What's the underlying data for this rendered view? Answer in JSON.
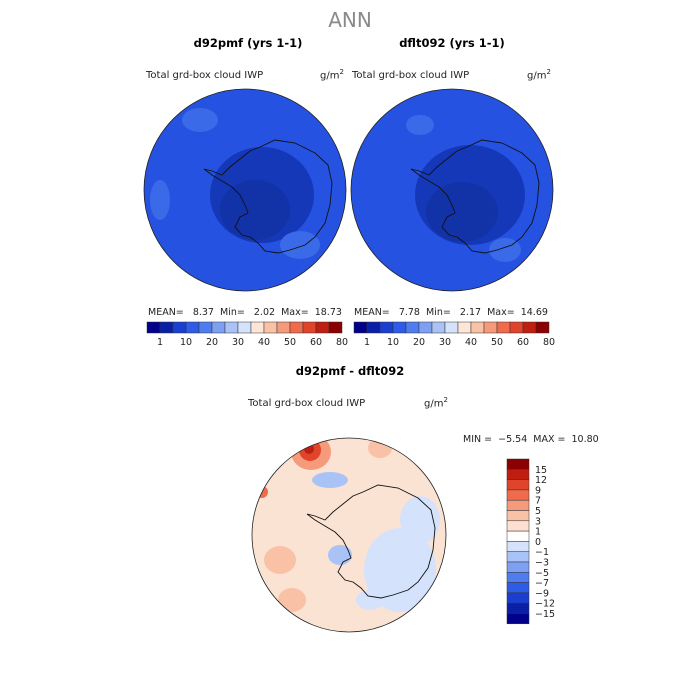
{
  "title": "ANN",
  "panels": [
    {
      "id": "p1",
      "title": "d92pmf (yrs 1-1)",
      "var_label": "Total grd-box cloud IWP",
      "unit": "g/m",
      "unit_sup": "2",
      "stats": "MEAN=   8.37  Min=   2.02  Max=  18.73"
    },
    {
      "id": "p2",
      "title": "dflt092 (yrs 1-1)",
      "var_label": "Total grd-box cloud IWP",
      "unit": "g/m",
      "unit_sup": "2",
      "stats": "MEAN=   7.78  Min=   2.17  Max=  14.69"
    }
  ],
  "colorbar_top": {
    "labels": [
      "1",
      "10",
      "20",
      "30",
      "40",
      "50",
      "60",
      "80"
    ],
    "colors": [
      "#00008b",
      "#0a1fa8",
      "#1a3fd0",
      "#2e5be8",
      "#4f7df0",
      "#7ea0f2",
      "#aac3f7",
      "#d4e2fb",
      "#fde6d8",
      "#f9c2a6",
      "#f59a7a",
      "#f06a4c",
      "#e0442a",
      "#c01e10",
      "#8b0000"
    ]
  },
  "difference": {
    "title": "d92pmf - dflt092",
    "var_label": "Total grd-box cloud IWP",
    "unit": "g/m",
    "unit_sup": "2",
    "stats": "MIN =  −5.54  MAX =  10.80",
    "colorbar": {
      "labels": [
        "15",
        "12",
        "9",
        "7",
        "5",
        "3",
        "1",
        "0",
        "−1",
        "−3",
        "−5",
        "−7",
        "−9",
        "−12",
        "−15"
      ],
      "colors": [
        "#8b0000",
        "#c01e10",
        "#e0442a",
        "#f06a4c",
        "#f59a7a",
        "#f9c2a6",
        "#fde0cf",
        "#ffffff",
        "#d4e2fb",
        "#aac3f7",
        "#7ea0f2",
        "#4f7df0",
        "#2e5be8",
        "#1a3fd0",
        "#0a1fa8",
        "#00008b"
      ]
    }
  },
  "colors": {
    "map_base": "#2552e0",
    "map_dark": "#1538b8",
    "map_light": "#3a6ae8",
    "diff_base": "#fbe3d4"
  }
}
